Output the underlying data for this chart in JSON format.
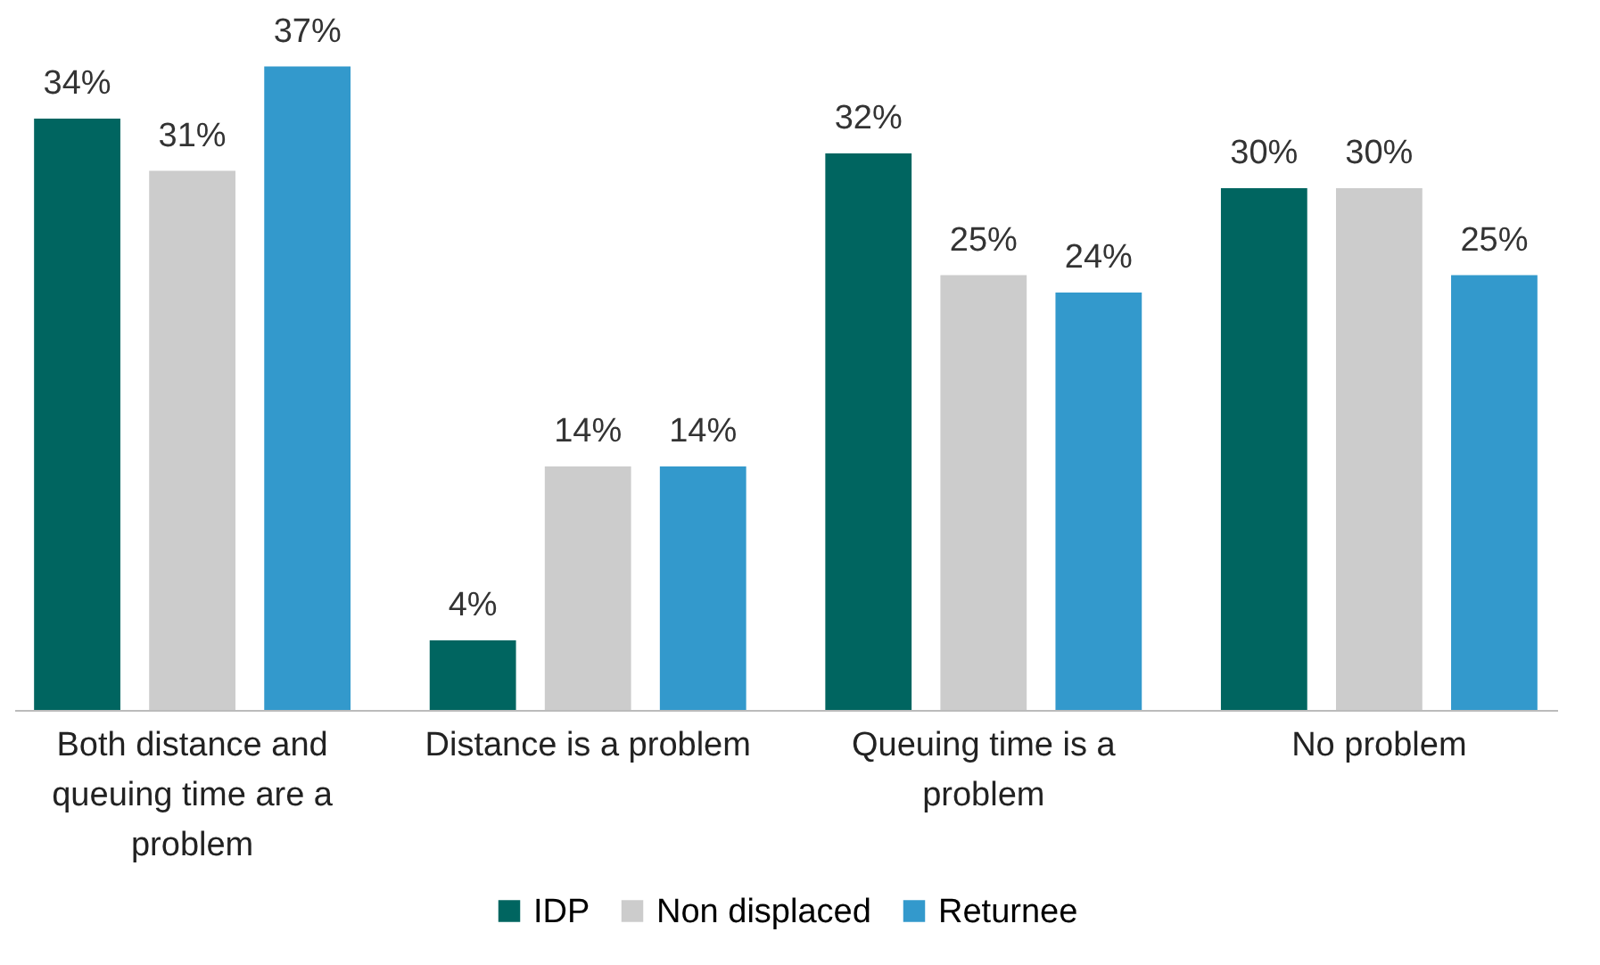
{
  "chart_data": {
    "type": "bar",
    "categories": [
      "Both distance and queuing time are a problem",
      "Distance is a problem",
      "Queuing time is a problem",
      "No problem"
    ],
    "series": [
      {
        "name": "IDP",
        "color": "#006560",
        "values": [
          34,
          4,
          32,
          30
        ],
        "value_labels": [
          "34%",
          "4%",
          "32%",
          "30%"
        ]
      },
      {
        "name": "Non displaced",
        "color": "#cccccc",
        "values": [
          31,
          14,
          25,
          30
        ],
        "value_labels": [
          "31%",
          "14%",
          "25%",
          "30%"
        ]
      },
      {
        "name": "Returnee",
        "color": "#3399cc",
        "values": [
          37,
          14,
          24,
          25
        ],
        "value_labels": [
          "37%",
          "14%",
          "24%",
          "25%"
        ]
      }
    ],
    "legend": "bottom"
  }
}
